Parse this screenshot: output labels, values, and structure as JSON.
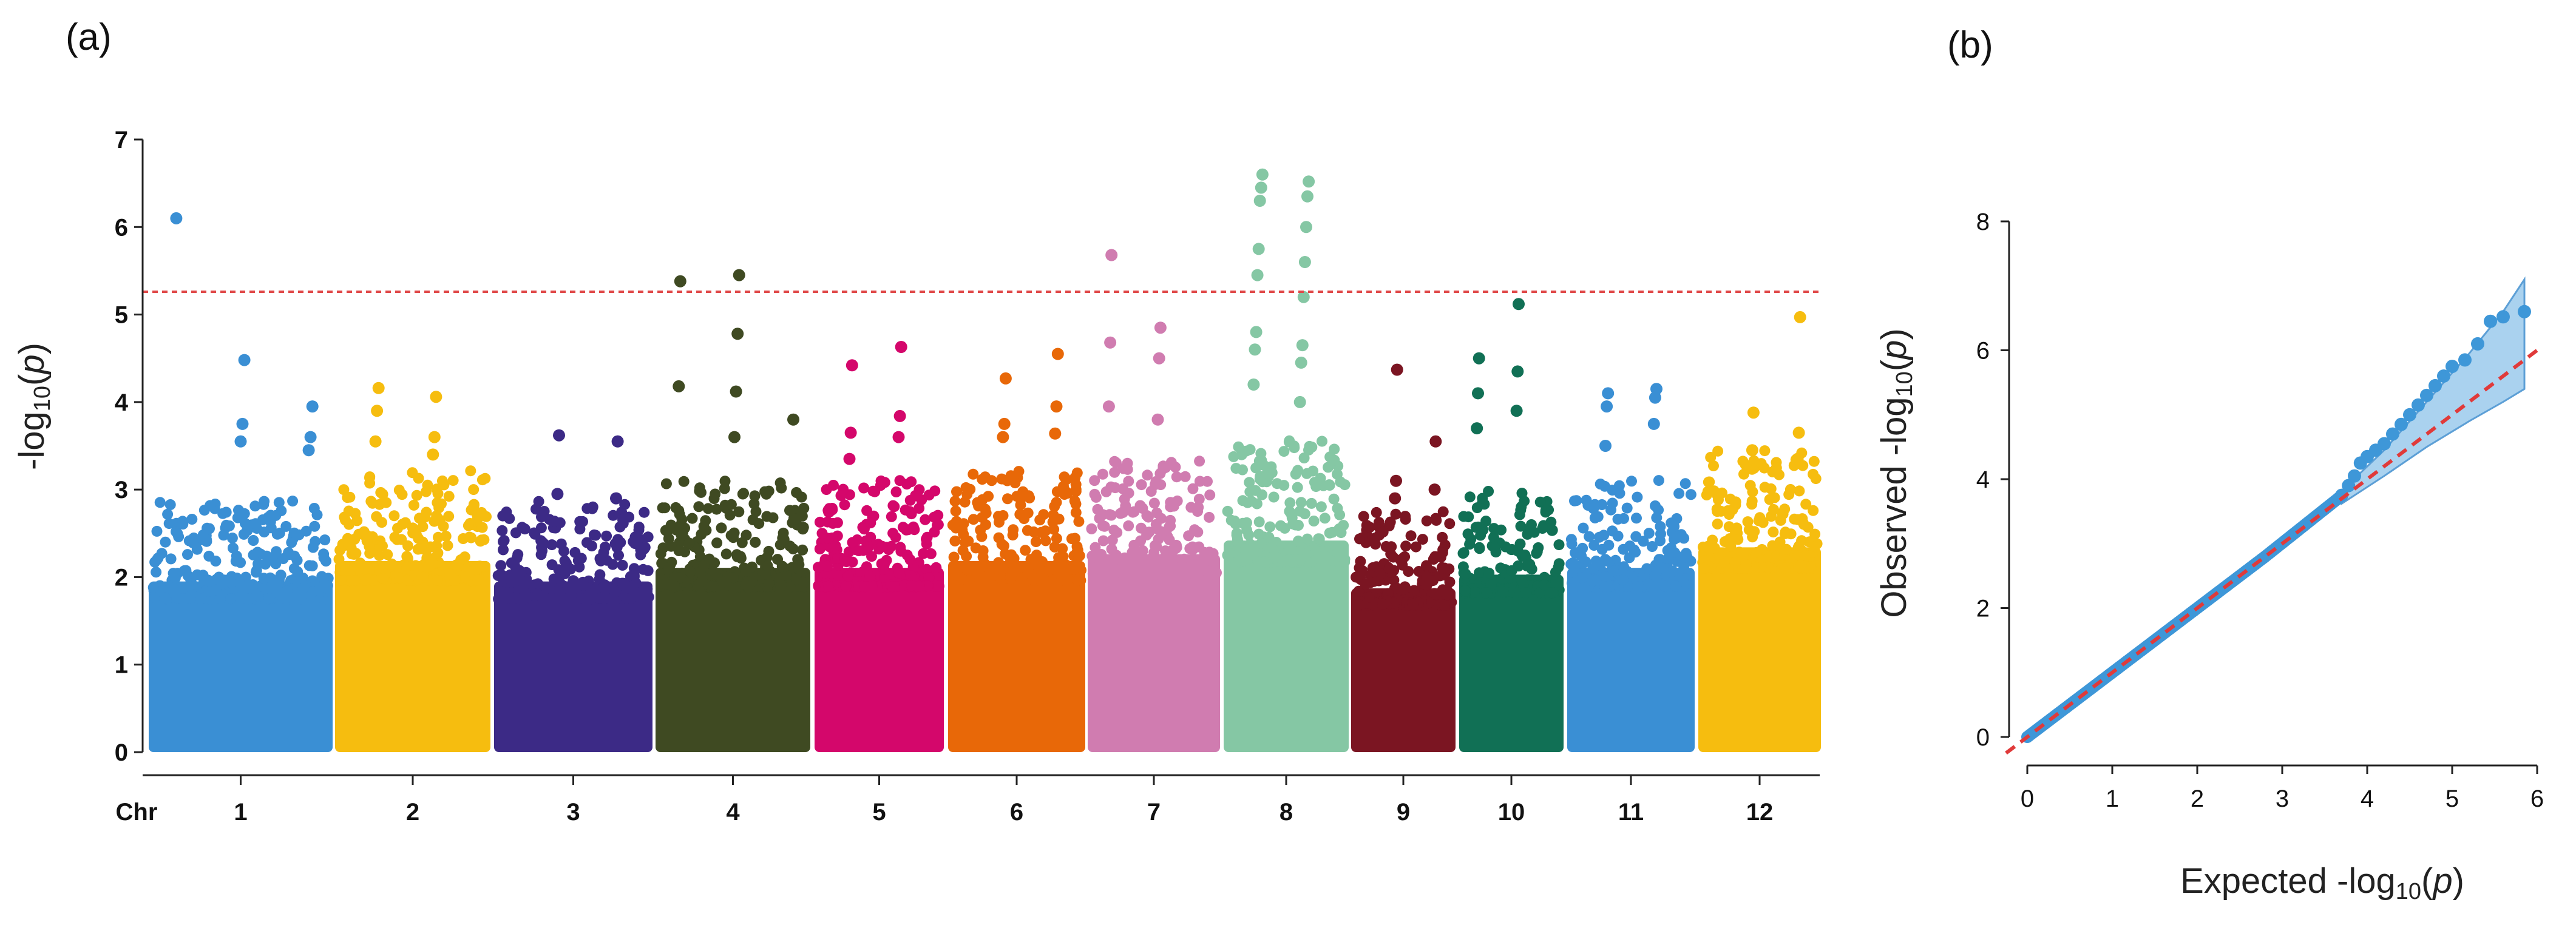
{
  "panels": {
    "a_label": "(a)",
    "b_label": "(b)"
  },
  "chart_data": [
    {
      "type": "scatter",
      "subtype": "manhattan",
      "title": "",
      "xlabel": "Chr",
      "ylabel_parts": [
        "-log",
        "10",
        "(",
        "p",
        ")"
      ],
      "ylim": [
        0,
        7
      ],
      "yticks": [
        0,
        1,
        2,
        3,
        4,
        5,
        6,
        7
      ],
      "significance_threshold": 5.26,
      "threshold_color": "#e04848",
      "grid": false,
      "chromosomes": [
        {
          "chr": "1",
          "color": "#3a8fd4",
          "base_max": 2.5,
          "top_points": [
            6.1,
            4.48,
            3.95,
            3.75,
            3.6,
            3.55,
            3.45
          ]
        },
        {
          "chr": "2",
          "color": "#f6bd0f",
          "base_max": 2.8,
          "top_points": [
            4.16,
            4.06,
            3.9,
            3.6,
            3.55,
            3.4
          ]
        },
        {
          "chr": "3",
          "color": "#3c2a86",
          "base_max": 2.5,
          "top_points": [
            3.62,
            3.55,
            2.95,
            2.9
          ]
        },
        {
          "chr": "4",
          "color": "#3f4a22",
          "base_max": 2.7,
          "top_points": [
            5.45,
            5.38,
            4.78,
            4.18,
            4.12,
            3.8,
            3.6
          ]
        },
        {
          "chr": "5",
          "color": "#d4076b",
          "base_max": 2.7,
          "top_points": [
            4.63,
            4.42,
            3.84,
            3.65,
            3.6,
            3.35
          ]
        },
        {
          "chr": "6",
          "color": "#e86808",
          "base_max": 2.8,
          "top_points": [
            4.55,
            4.27,
            3.95,
            3.75,
            3.64,
            3.6
          ]
        },
        {
          "chr": "7",
          "color": "#d07cb0",
          "base_max": 2.9,
          "top_points": [
            5.68,
            4.85,
            4.68,
            4.5,
            3.95,
            3.8
          ]
        },
        {
          "chr": "8",
          "color": "#85c7a4",
          "base_max": 3.1,
          "top_points": [
            6.6,
            6.52,
            6.45,
            6.35,
            6.3,
            6.0,
            5.75,
            5.6,
            5.45,
            5.2,
            4.8,
            4.65,
            4.6,
            4.45,
            4.2,
            4.0
          ]
        },
        {
          "chr": "9",
          "color": "#7b1522",
          "base_max": 2.4,
          "top_points": [
            4.37,
            3.55,
            3.1,
            3.0,
            2.9
          ]
        },
        {
          "chr": "10",
          "color": "#117055",
          "base_max": 2.6,
          "top_points": [
            5.12,
            4.5,
            4.35,
            4.1,
            3.9,
            3.7
          ]
        },
        {
          "chr": "11",
          "color": "#3a8fd4",
          "base_max": 2.7,
          "top_points": [
            4.15,
            4.1,
            4.05,
            3.95,
            3.75,
            3.5
          ]
        },
        {
          "chr": "12",
          "color": "#f6bd0f",
          "base_max": 3.0,
          "top_points": [
            4.97,
            3.88,
            3.65,
            3.45,
            3.35
          ]
        }
      ]
    },
    {
      "type": "scatter",
      "subtype": "qq",
      "title": "",
      "xlabel_parts": [
        "Expected  ",
        "-log",
        "10",
        "(",
        "p",
        ")"
      ],
      "ylabel_parts": [
        "Observed  ",
        "-log",
        "10",
        "(",
        "p",
        ")"
      ],
      "xlim": [
        0,
        6
      ],
      "ylim": [
        0,
        8
      ],
      "xticks": [
        0,
        1,
        2,
        3,
        4,
        5,
        6
      ],
      "yticks": [
        0,
        2,
        4,
        6,
        8
      ],
      "point_color": "#3e97d8",
      "band_color": "#8ec3ea",
      "diagonal_color": "#e03a3a",
      "confidence_band": {
        "x": [
          3.7,
          4.2,
          4.7,
          5.2,
          5.6,
          5.85
        ],
        "upper": [
          3.82,
          4.45,
          5.2,
          5.95,
          6.6,
          7.1
        ],
        "lower": [
          3.62,
          4.05,
          4.5,
          4.9,
          5.2,
          5.4
        ]
      },
      "observed_tail": [
        {
          "x": 3.7,
          "y": 3.75
        },
        {
          "x": 3.78,
          "y": 3.9
        },
        {
          "x": 3.85,
          "y": 4.05
        },
        {
          "x": 3.92,
          "y": 4.25
        },
        {
          "x": 4.0,
          "y": 4.35
        },
        {
          "x": 4.1,
          "y": 4.45
        },
        {
          "x": 4.2,
          "y": 4.55
        },
        {
          "x": 4.3,
          "y": 4.7
        },
        {
          "x": 4.4,
          "y": 4.85
        },
        {
          "x": 4.5,
          "y": 5.0
        },
        {
          "x": 4.6,
          "y": 5.15
        },
        {
          "x": 4.7,
          "y": 5.3
        },
        {
          "x": 4.8,
          "y": 5.45
        },
        {
          "x": 4.9,
          "y": 5.6
        },
        {
          "x": 5.0,
          "y": 5.75
        },
        {
          "x": 5.15,
          "y": 5.85
        },
        {
          "x": 5.3,
          "y": 6.1
        },
        {
          "x": 5.45,
          "y": 6.45
        },
        {
          "x": 5.6,
          "y": 6.52
        },
        {
          "x": 5.85,
          "y": 6.6
        }
      ]
    }
  ]
}
